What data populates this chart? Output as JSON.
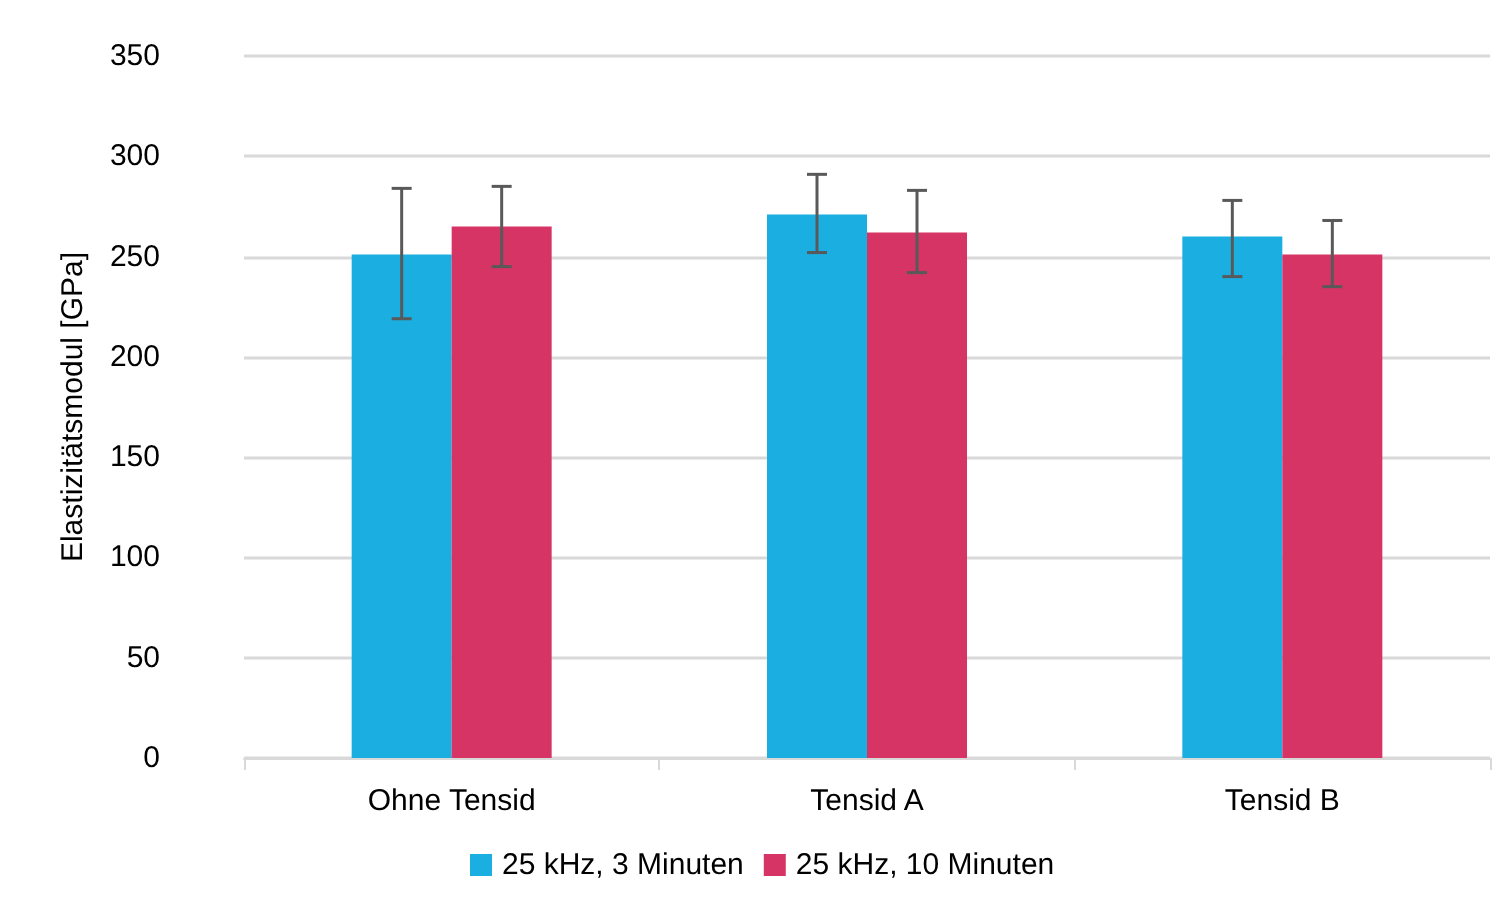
{
  "chart_data": {
    "type": "bar",
    "ylabel": "Elastizitätsmodul [GPa]",
    "categories": [
      "Ohne Tensid",
      "Tensid A",
      "Tensid B"
    ],
    "series": [
      {
        "name": "25 kHz, 3 Minuten",
        "color": "#1aafe0",
        "values": [
          251,
          271,
          260
        ],
        "errors": [
          [
            219,
            284
          ],
          [
            252,
            291
          ],
          [
            240,
            278
          ]
        ]
      },
      {
        "name": "25 kHz, 10 Minuten",
        "color": "#d63464",
        "values": [
          265,
          262,
          251
        ],
        "errors": [
          [
            245,
            285
          ],
          [
            242,
            283
          ],
          [
            235,
            268
          ]
        ]
      }
    ],
    "ylim": [
      0,
      350
    ],
    "yticks": [
      0,
      50,
      100,
      150,
      200,
      250,
      300,
      350
    ],
    "grid": "y",
    "legend": "bottom"
  }
}
